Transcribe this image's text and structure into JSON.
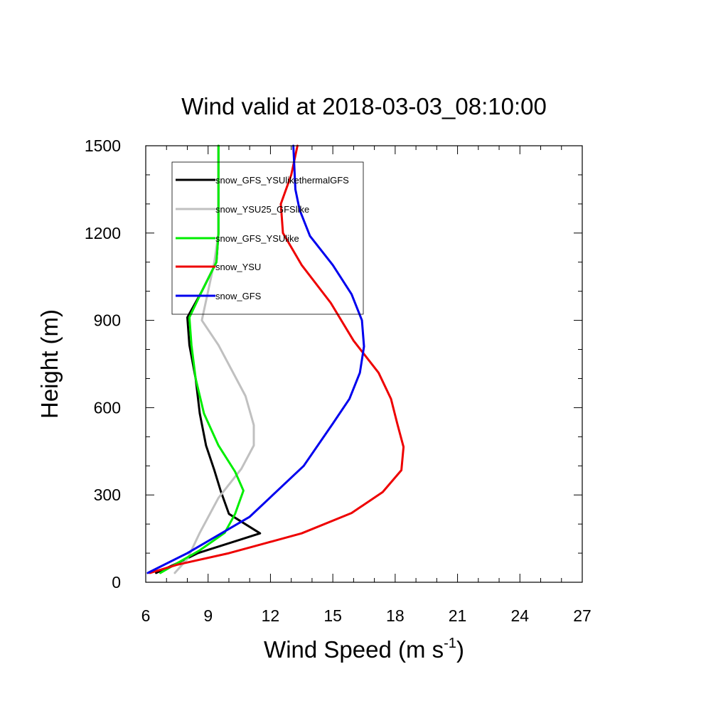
{
  "chart_data": {
    "type": "line",
    "title": "Wind valid at 2018-03-03_08:10:00",
    "xlabel": "Wind Speed (m s",
    "xlabel_sup": "-1",
    "xlabel_close": ")",
    "ylabel": "Height (m)",
    "xlim": [
      6,
      27
    ],
    "ylim": [
      0,
      1500
    ],
    "xticks": [
      6,
      9,
      12,
      15,
      18,
      21,
      24,
      27
    ],
    "yticks": [
      0,
      300,
      600,
      900,
      1200,
      1500
    ],
    "grid": false,
    "legend_position": "top-left",
    "series": [
      {
        "name": "snow_GFS_YSUlikethermalGFS",
        "color": "#000000",
        "points": [
          [
            6.5,
            32
          ],
          [
            7.5,
            65
          ],
          [
            8.5,
            100
          ],
          [
            11.5,
            168
          ],
          [
            10.0,
            235
          ],
          [
            9.6,
            315
          ],
          [
            9.3,
            385
          ],
          [
            8.9,
            470
          ],
          [
            8.6,
            580
          ],
          [
            8.4,
            700
          ],
          [
            8.1,
            815
          ],
          [
            8.0,
            910
          ],
          [
            8.7,
            1000
          ],
          [
            9.4,
            1100
          ],
          [
            9.5,
            1200
          ],
          [
            9.5,
            1300
          ],
          [
            9.5,
            1400
          ],
          [
            9.5,
            1500
          ]
        ]
      },
      {
        "name": "snow_YSU25_GFSlike",
        "color": "#c0c0c0",
        "points": [
          [
            7.4,
            32
          ],
          [
            8.0,
            80
          ],
          [
            8.6,
            170
          ],
          [
            9.5,
            290
          ],
          [
            10.6,
            390
          ],
          [
            11.2,
            470
          ],
          [
            11.2,
            540
          ],
          [
            10.8,
            640
          ],
          [
            9.5,
            815
          ],
          [
            8.7,
            900
          ],
          [
            9.0,
            1000
          ],
          [
            9.3,
            1100
          ],
          [
            9.5,
            1200
          ],
          [
            9.5,
            1300
          ],
          [
            9.5,
            1400
          ],
          [
            9.5,
            1500
          ]
        ]
      },
      {
        "name": "snow_GFS_YSUlike",
        "color": "#00ee00",
        "points": [
          [
            6.7,
            32
          ],
          [
            7.5,
            65
          ],
          [
            8.6,
            110
          ],
          [
            9.8,
            170
          ],
          [
            10.3,
            235
          ],
          [
            10.7,
            315
          ],
          [
            10.3,
            380
          ],
          [
            9.5,
            470
          ],
          [
            8.8,
            580
          ],
          [
            8.4,
            700
          ],
          [
            8.2,
            815
          ],
          [
            8.1,
            910
          ],
          [
            8.7,
            1000
          ],
          [
            9.4,
            1100
          ],
          [
            9.5,
            1200
          ],
          [
            9.5,
            1300
          ],
          [
            9.5,
            1400
          ],
          [
            9.5,
            1500
          ]
        ]
      },
      {
        "name": "snow_YSU",
        "color": "#ee0000",
        "points": [
          [
            6.2,
            32
          ],
          [
            7.5,
            60
          ],
          [
            10.0,
            100
          ],
          [
            13.5,
            168
          ],
          [
            15.9,
            238
          ],
          [
            17.4,
            310
          ],
          [
            18.3,
            385
          ],
          [
            18.4,
            465
          ],
          [
            18.1,
            545
          ],
          [
            17.8,
            630
          ],
          [
            17.2,
            720
          ],
          [
            16.0,
            830
          ],
          [
            14.9,
            960
          ],
          [
            13.5,
            1090
          ],
          [
            12.6,
            1200
          ],
          [
            12.5,
            1300
          ],
          [
            13.0,
            1400
          ],
          [
            13.3,
            1500
          ]
        ]
      },
      {
        "name": "snow_GFS",
        "color": "#0000ee",
        "points": [
          [
            6.1,
            32
          ],
          [
            8.0,
            100
          ],
          [
            11.0,
            225
          ],
          [
            13.6,
            400
          ],
          [
            15.0,
            545
          ],
          [
            15.8,
            630
          ],
          [
            16.3,
            720
          ],
          [
            16.5,
            810
          ],
          [
            16.4,
            900
          ],
          [
            15.9,
            990
          ],
          [
            15.0,
            1090
          ],
          [
            13.9,
            1190
          ],
          [
            13.4,
            1280
          ],
          [
            13.2,
            1350
          ],
          [
            13.1,
            1500
          ]
        ]
      }
    ]
  }
}
